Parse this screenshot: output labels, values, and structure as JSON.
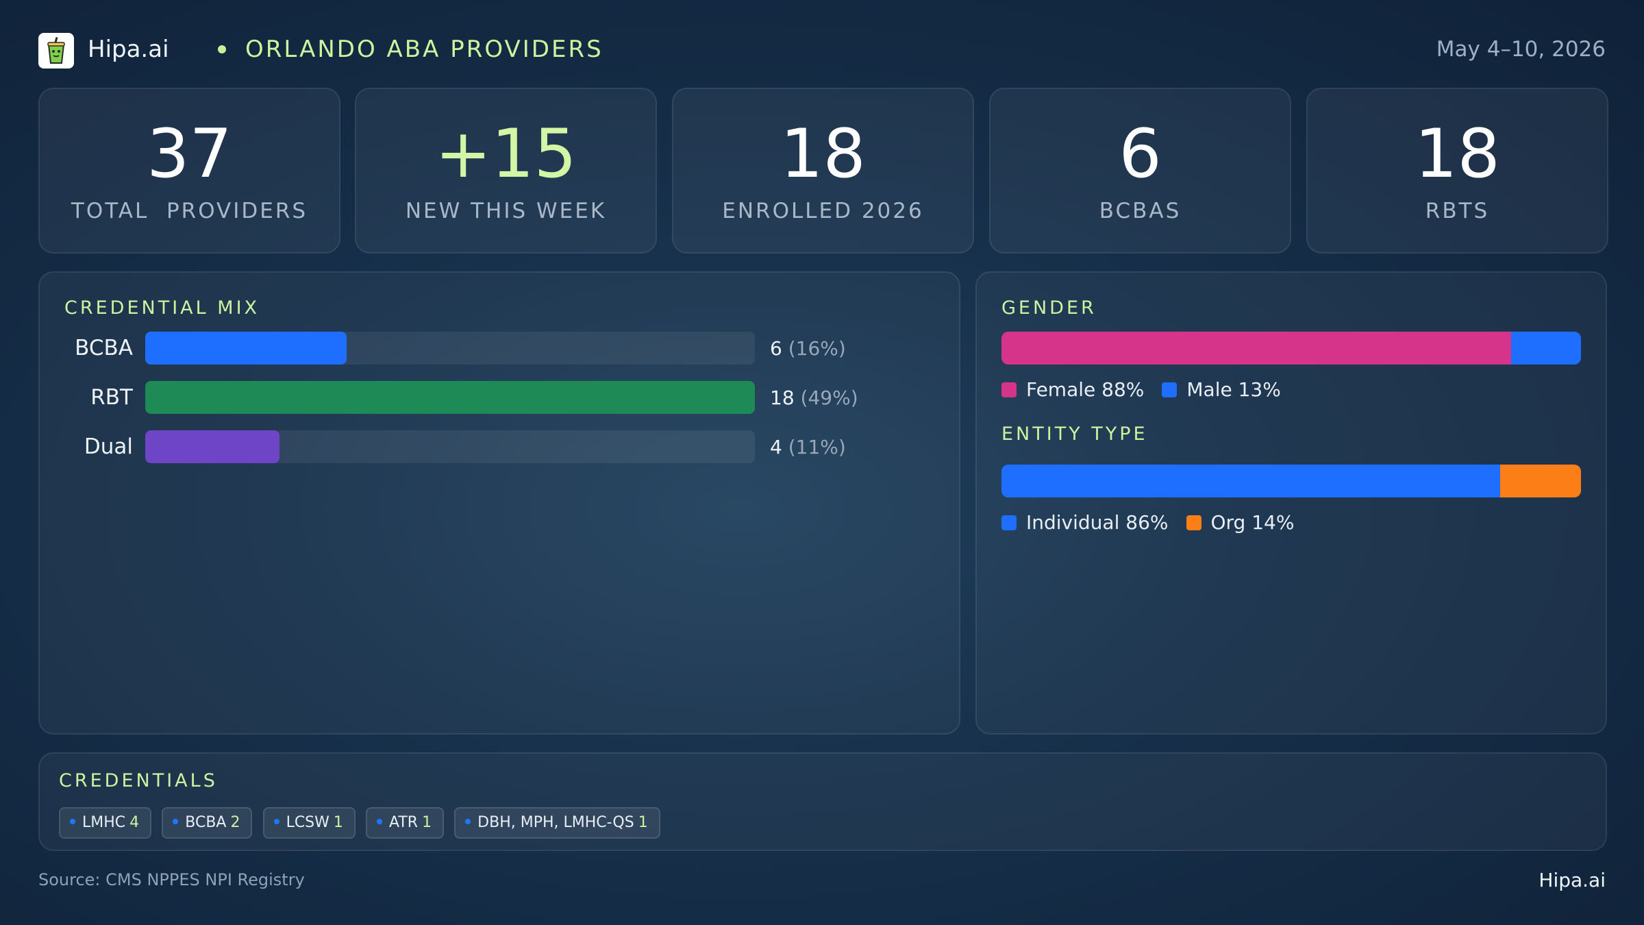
{
  "header": {
    "brand": "Hipa.ai",
    "region": "ORLANDO ABA PROVIDERS",
    "date_range": "May 4–10, 2026"
  },
  "kpis": [
    {
      "value": "37",
      "label": "TOTAL  PROVIDERS"
    },
    {
      "value": "+15",
      "label": "NEW THIS WEEK"
    },
    {
      "value": "18",
      "label": "ENROLLED 2026"
    },
    {
      "value": "6",
      "label": "BCBAS"
    },
    {
      "value": "18",
      "label": "RBTS"
    }
  ],
  "credential_mix": {
    "title": "CREDENTIAL MIX",
    "rows": [
      {
        "label": "BCBA",
        "count": "6",
        "pct": "(16%)",
        "fraction": 0.33,
        "color": "#1e6fff"
      },
      {
        "label": "RBT",
        "count": "18",
        "pct": "(49%)",
        "fraction": 1.0,
        "color": "#1e8a55"
      },
      {
        "label": "Dual",
        "count": "4",
        "pct": "(11%)",
        "fraction": 0.22,
        "color": "#6f45c7"
      }
    ]
  },
  "gender": {
    "title": "GENDER",
    "segments": [
      {
        "label": "Female 88%",
        "share": 88,
        "color": "#d6338a"
      },
      {
        "label": "Male 13%",
        "share": 12,
        "color": "#1e6fff"
      }
    ]
  },
  "entity_type": {
    "title": "ENTITY TYPE",
    "segments": [
      {
        "label": "Individual 86%",
        "share": 86,
        "color": "#1e6fff"
      },
      {
        "label": "Org 14%",
        "share": 14,
        "color": "#fb7e17"
      }
    ]
  },
  "credentials": {
    "title": "CREDENTIALS",
    "chips": [
      {
        "label": "LMHC",
        "count": "4"
      },
      {
        "label": "BCBA",
        "count": "2"
      },
      {
        "label": "LCSW",
        "count": "1"
      },
      {
        "label": "ATR",
        "count": "1"
      },
      {
        "label": "DBH, MPH, LMHC-QS",
        "count": "1"
      }
    ]
  },
  "footer": {
    "source": "Source: CMS NPPES NPI Registry",
    "brand": "Hipa.ai"
  },
  "icons": {
    "logo": "drink-cup-icon"
  }
}
